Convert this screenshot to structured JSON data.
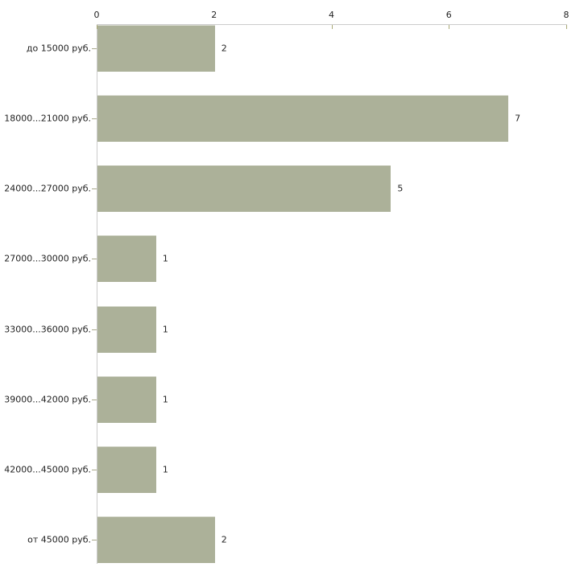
{
  "chart_data": {
    "type": "bar",
    "orientation": "horizontal",
    "title": "",
    "xlabel": "",
    "ylabel": "",
    "categories": [
      "до 15000 руб.",
      "18000...21000 руб.",
      "24000...27000 руб.",
      "27000...30000 руб.",
      "33000...36000 руб.",
      "39000...42000 руб.",
      "42000...45000 руб.",
      "от 45000 руб."
    ],
    "values": [
      2,
      7,
      5,
      1,
      1,
      1,
      1,
      2
    ],
    "value_labels": [
      "2",
      "7",
      "5",
      "1",
      "1",
      "1",
      "1",
      "2"
    ],
    "xlim": [
      0,
      8
    ],
    "x_ticks": [
      "0",
      "2",
      "4",
      "6",
      "8"
    ],
    "x_tick_values": [
      0,
      2,
      4,
      6,
      8
    ],
    "grid": false,
    "legend": "none",
    "axis_position": "top",
    "colors": {
      "bar": "#acb199",
      "bar_edge_top": "#d8dacf",
      "axis": "#cccccc",
      "tick_mark": "#a9a977",
      "category_tick": "#a8a88a",
      "text": "#222222",
      "background": "#ffffff"
    }
  }
}
